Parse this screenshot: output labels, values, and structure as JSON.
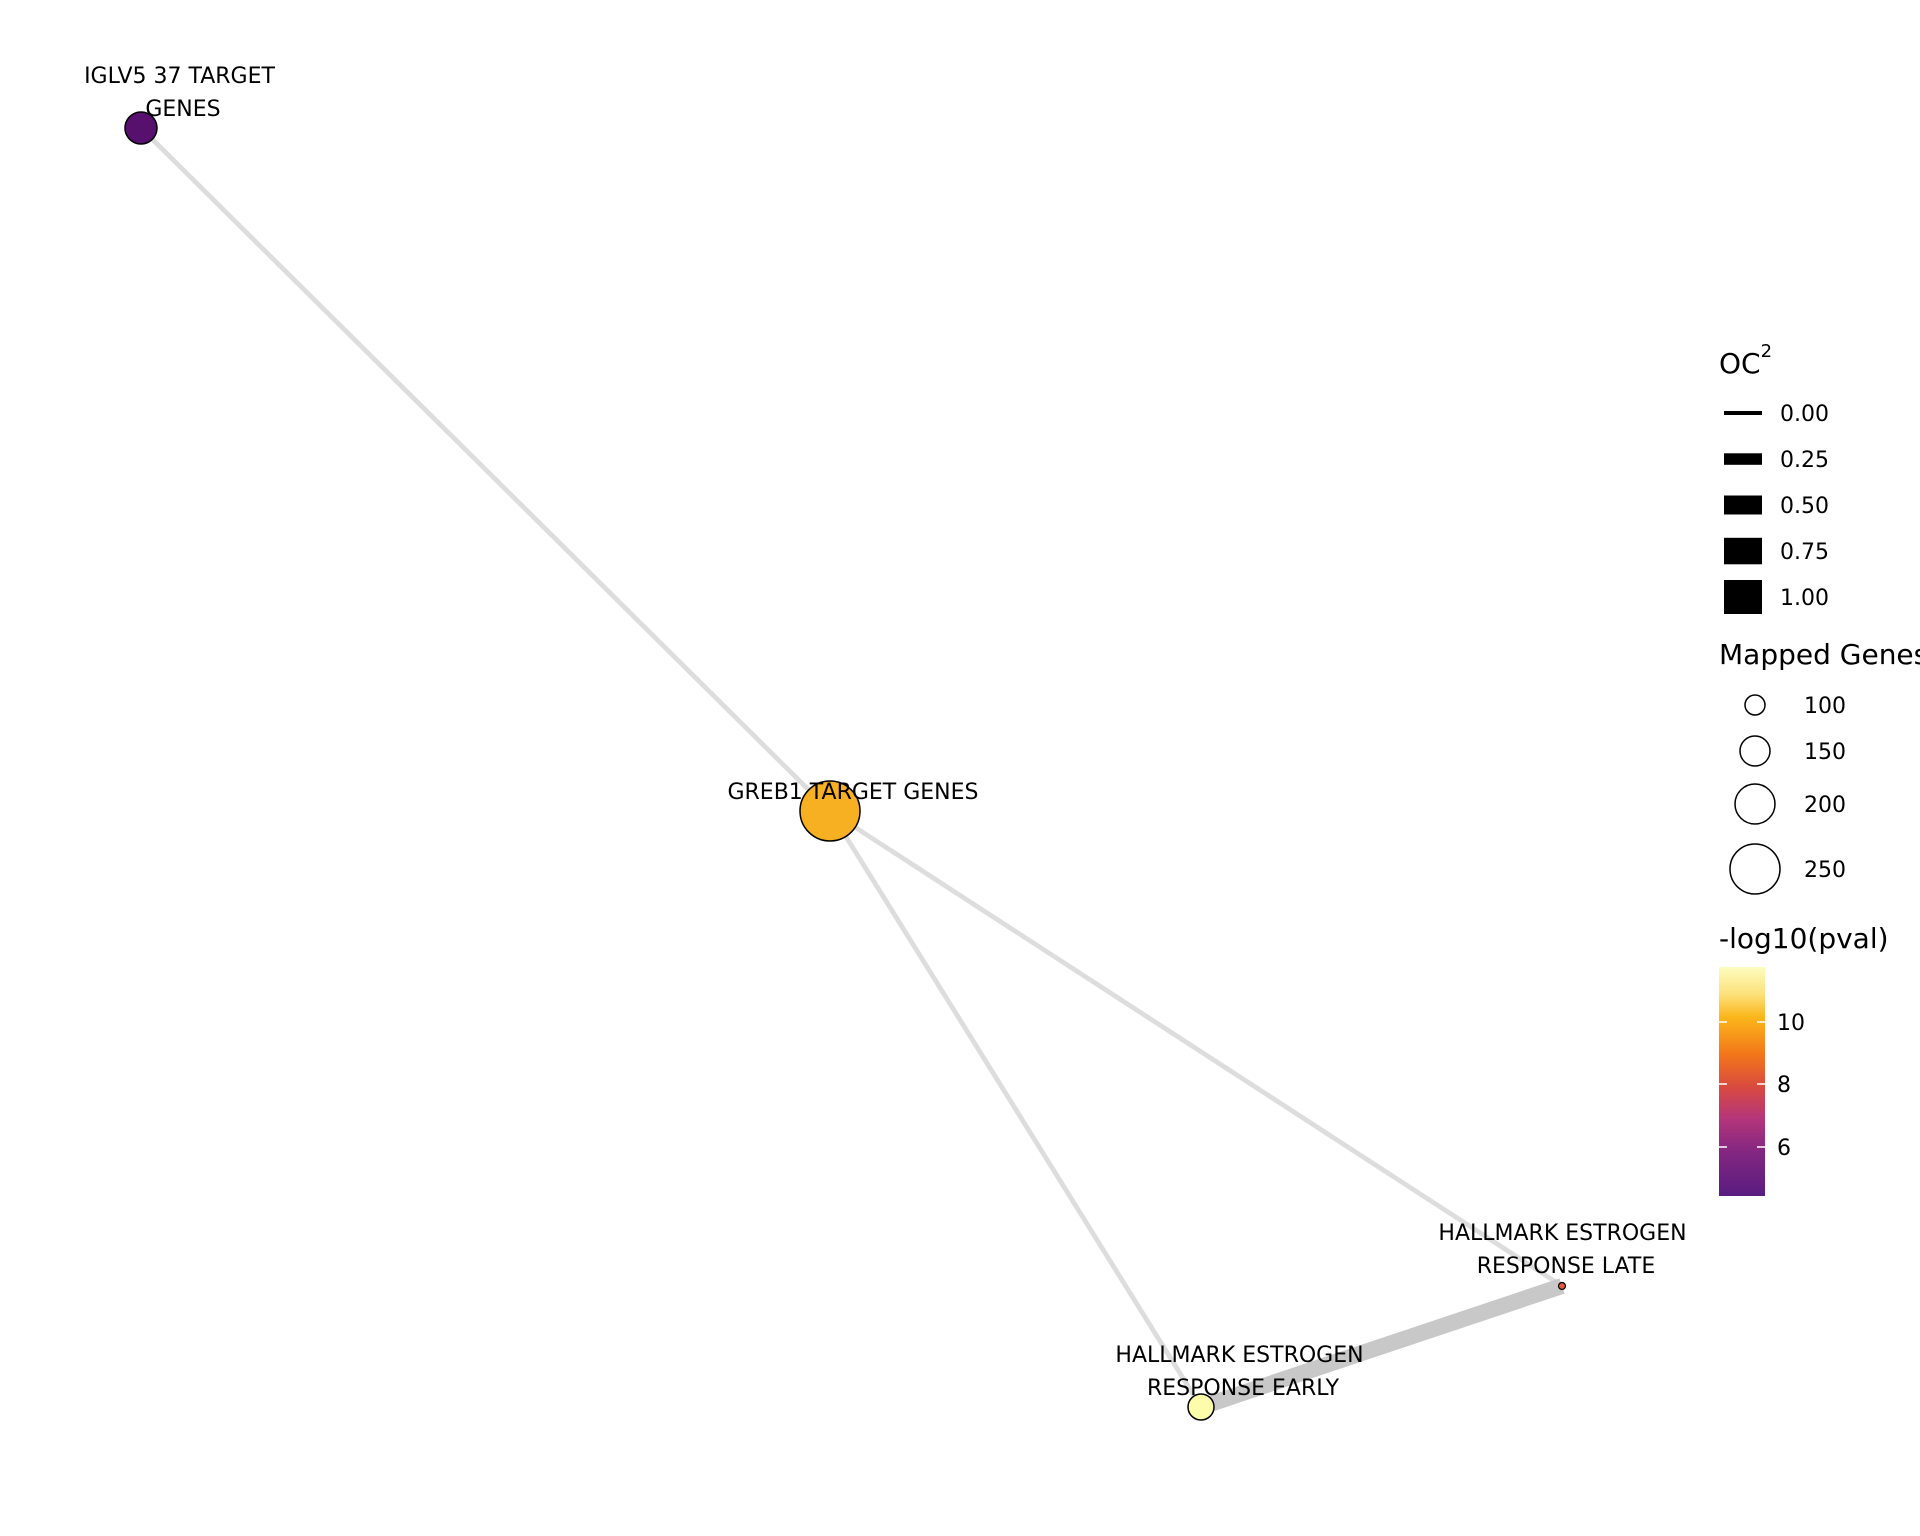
{
  "nodes": [
    {
      "id": "iglv5",
      "label": [
        "IGLV5 37 TARGET",
        "GENES"
      ],
      "color": "#57106e"
    },
    {
      "id": "greb1",
      "label": [
        "GREB1 TARGET GENES"
      ],
      "color": "#f8b023"
    },
    {
      "id": "early",
      "label": [
        "HALLMARK ESTROGEN",
        "RESPONSE EARLY"
      ],
      "color": "#fcfcaa"
    },
    {
      "id": "late",
      "label": [
        "HALLMARK ESTROGEN",
        "RESPONSE LATE"
      ],
      "color": "#e25a3a"
    }
  ],
  "edges": [
    {
      "source": "iglv5",
      "target": "greb1",
      "oc2": 0.02,
      "color": "#dddddd"
    },
    {
      "source": "greb1",
      "target": "early",
      "oc2": 0.02,
      "color": "#dddddd"
    },
    {
      "source": "greb1",
      "target": "late",
      "oc2": 0.02,
      "color": "#dddddd"
    },
    {
      "source": "early",
      "target": "late",
      "oc2": 0.3,
      "color": "#c8c8c8"
    }
  ],
  "legend": {
    "edge_width": {
      "title_base": "OC",
      "title_sup": "2",
      "items": [
        {
          "label": "0.00",
          "value": 0.0
        },
        {
          "label": "0.25",
          "value": 0.25
        },
        {
          "label": "0.50",
          "value": 0.5
        },
        {
          "label": "0.75",
          "value": 0.75
        },
        {
          "label": "1.00",
          "value": 1.0
        }
      ]
    },
    "node_size": {
      "title": "Mapped Genes",
      "items": [
        {
          "label": "100",
          "value": 100
        },
        {
          "label": "150",
          "value": 150
        },
        {
          "label": "200",
          "value": 200
        },
        {
          "label": "250",
          "value": 250
        }
      ]
    },
    "color": {
      "title": "-log10(pval)",
      "ticks": [
        {
          "label": "10",
          "value": 10
        },
        {
          "label": "8",
          "value": 8
        },
        {
          "label": "6",
          "value": 6
        }
      ],
      "range": [
        4.5,
        12
      ],
      "palette": [
        "#fcfdbf",
        "#fbb61a",
        "#f3771a",
        "#d94b3e",
        "#b5367a",
        "#862781",
        "#571d80",
        "#3b0f70"
      ]
    }
  }
}
